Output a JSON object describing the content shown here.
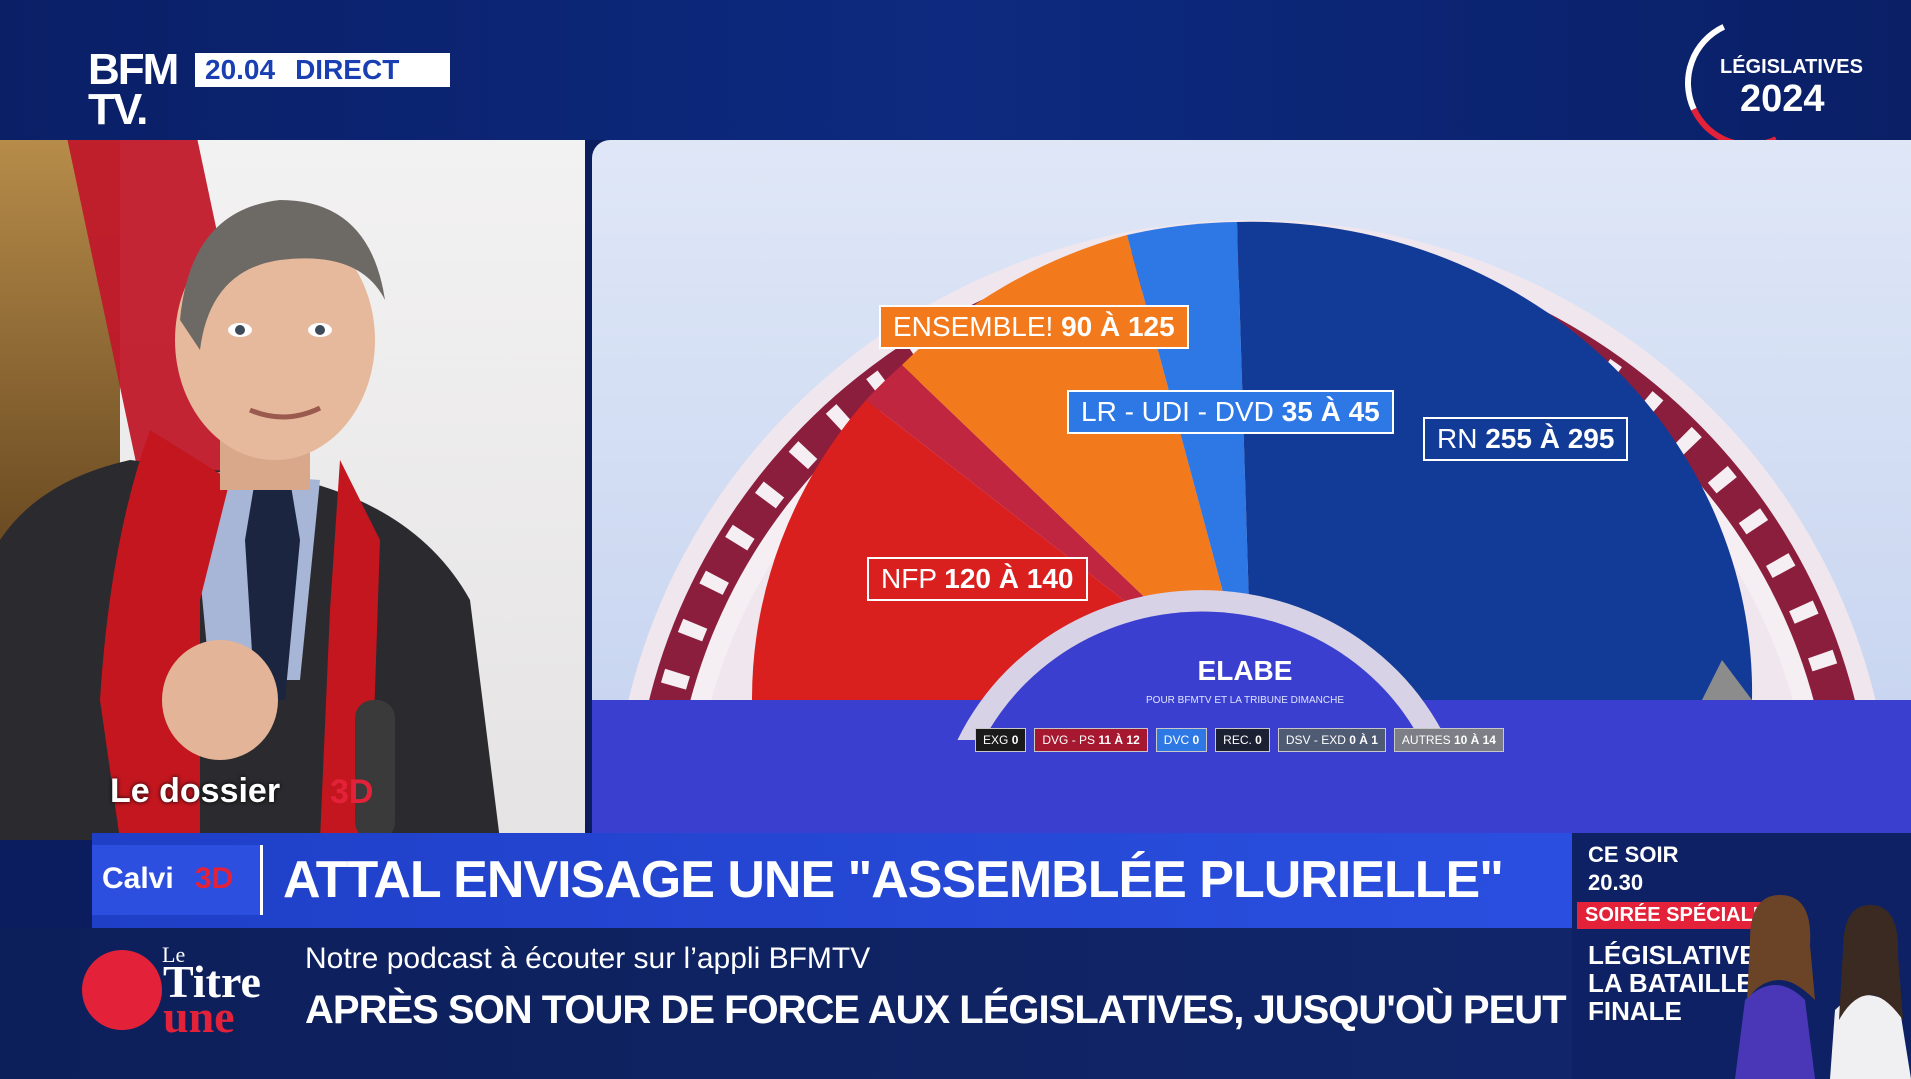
{
  "header": {
    "logo_line1": "BFM",
    "logo_line2": "TV.",
    "time": "20.04",
    "live": "DIRECT",
    "badge_label": "LÉGISLATIVES",
    "badge_year": "2024"
  },
  "studio": {
    "segment_label": "Le dossier",
    "segment_3d": "3D"
  },
  "projection": {
    "ensemble": {
      "name": "ENSEMBLE!",
      "range": "90 À 125",
      "color": "#f27a1c"
    },
    "lr": {
      "name": "LR - UDI - DVD",
      "range": "35 À 45",
      "color": "#2e78e6"
    },
    "rn": {
      "name": "RN",
      "range": "255 À 295",
      "color": "#123a97"
    },
    "nfp": {
      "name": "NFP",
      "range": "120 À 140",
      "color": "#d9201f"
    },
    "pollster": "ELABE",
    "pollster_sub": "POUR BFMTV ET LA TRIBUNE DIMANCHE",
    "minor": [
      {
        "name": "EXG",
        "value": "0",
        "color": "#1a1a1a"
      },
      {
        "name": "DVG - PS",
        "value": "11 À 12",
        "color": "#a5182f"
      },
      {
        "name": "DVC",
        "value": "0",
        "color": "#2e78e6"
      },
      {
        "name": "REC.",
        "value": "0",
        "color": "#1b2033"
      },
      {
        "name": "DSV - EXD",
        "value": "0 À 1",
        "color": "#4f5b73"
      },
      {
        "name": "AUTRES",
        "value": "10 À 14",
        "color": "#7d7f86"
      }
    ]
  },
  "headline": {
    "show_name": "Calvi",
    "show_3d": "3D",
    "text": "ATTAL ENVISAGE UNE \"ASSEMBLÉE PLURIELLE\""
  },
  "lower": {
    "podcast_title_1": "Le",
    "podcast_title_2": "Titre",
    "podcast_title_3": "une",
    "subtitle": "Notre podcast à écouter sur l’appli BFMTV",
    "ticker": "APRÈS SON TOUR DE FORCE AUX LÉGISLATIVES, JUSQU'OÙ PEUT ALLER LE RN ?"
  },
  "promo": {
    "tonight": "CE SOIR",
    "time": "20.30",
    "badge": "SOIRÉE SPÉCIALE",
    "title_1": "LÉGISLATIVES :",
    "title_2": "LA BATAILLE",
    "title_3": "FINALE"
  }
}
